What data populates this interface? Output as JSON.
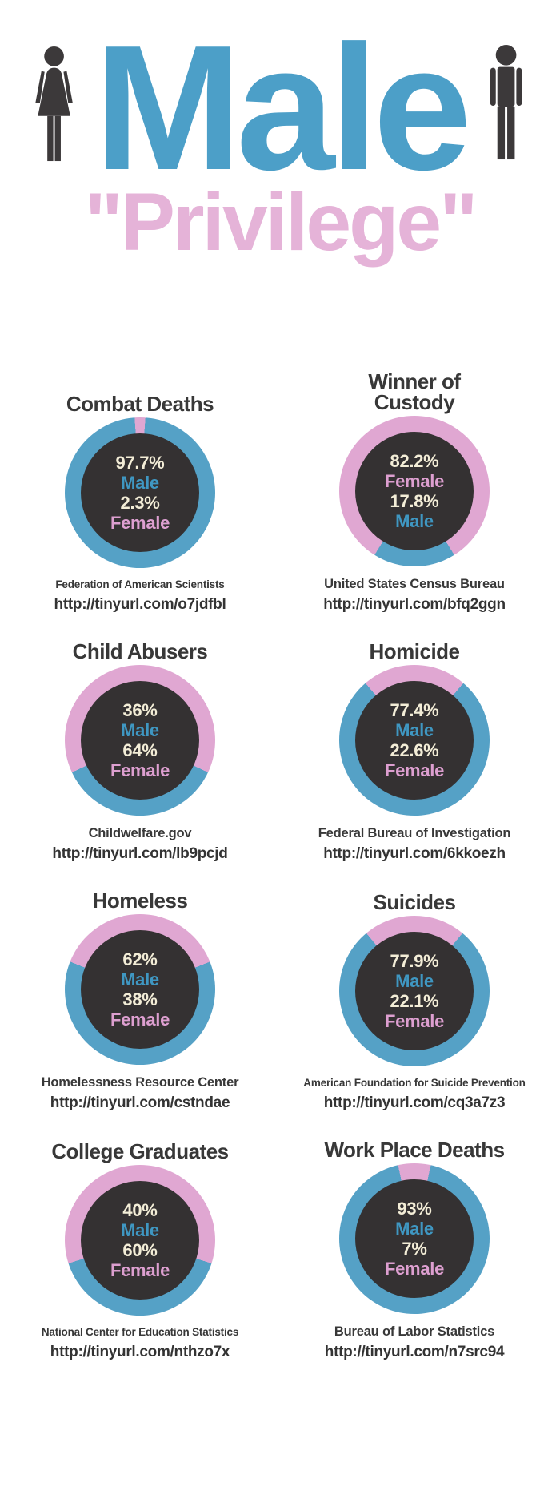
{
  "header": {
    "title": "Male",
    "subtitle": "\"Privilege\""
  },
  "colors": {
    "ring_blue": "#55a1c6",
    "ring_pink": "#e0a7d2",
    "center_dark": "#343132",
    "percent_cream": "#f3edd7",
    "male_text_blue": "#3f97c2",
    "female_text_pink": "#dd9fd0",
    "header_male_blue": "#4c9fc8",
    "header_privilege_pink": "#e5b3d8",
    "heading_dark": "#383838",
    "icon_gray": "#3c393a"
  },
  "chart_data": [
    {
      "type": "pie",
      "title": "Combat Deaths",
      "title_lines": [
        "Combat Deaths"
      ],
      "categories": [
        "Male",
        "Female"
      ],
      "values": [
        97.7,
        2.3
      ],
      "value_labels": [
        "97.7%",
        "2.3%"
      ],
      "center_text_order": [
        "Male",
        "Female"
      ],
      "segment_layout": "female-segment-centered-top",
      "source": "Federation of American Scientists",
      "url": "http://tinyurl.com/o7jdfbl"
    },
    {
      "type": "pie",
      "title": "Winner of Custody",
      "title_lines": [
        "Winner of",
        "Custody"
      ],
      "categories": [
        "Male",
        "Female"
      ],
      "values": [
        17.8,
        82.2
      ],
      "value_labels": [
        "17.8%",
        "82.2%"
      ],
      "center_text_order": [
        "Female",
        "Male"
      ],
      "segment_layout": "male-segment-centered-bottom",
      "source": "United States Census Bureau",
      "url": "http://tinyurl.com/bfq2ggn"
    },
    {
      "type": "pie",
      "title": "Child Abusers",
      "title_lines": [
        "Child Abusers"
      ],
      "categories": [
        "Male",
        "Female"
      ],
      "values": [
        36,
        64
      ],
      "value_labels": [
        "36%",
        "64%"
      ],
      "center_text_order": [
        "Male",
        "Female"
      ],
      "segment_layout": "male-segment-centered-bottom",
      "source": "Childwelfare.gov",
      "url": "http://tinyurl.com/lb9pcjd"
    },
    {
      "type": "pie",
      "title": "Homicide",
      "title_lines": [
        "Homicide"
      ],
      "categories": [
        "Male",
        "Female"
      ],
      "values": [
        77.4,
        22.6
      ],
      "value_labels": [
        "77.4%",
        "22.6%"
      ],
      "center_text_order": [
        "Male",
        "Female"
      ],
      "segment_layout": "female-segment-centered-top",
      "source": "Federal Bureau of Investigation",
      "url": "http://tinyurl.com/6kkoezh"
    },
    {
      "type": "pie",
      "title": "Homeless",
      "title_lines": [
        "Homeless"
      ],
      "categories": [
        "Male",
        "Female"
      ],
      "values": [
        62,
        38
      ],
      "value_labels": [
        "62%",
        "38%"
      ],
      "center_text_order": [
        "Male",
        "Female"
      ],
      "segment_layout": "female-segment-centered-top",
      "source": "Homelessness Resource Center",
      "url": "http://tinyurl.com/cstndae"
    },
    {
      "type": "pie",
      "title": "Suicides",
      "title_lines": [
        "Suicides"
      ],
      "categories": [
        "Male",
        "Female"
      ],
      "values": [
        77.9,
        22.1
      ],
      "value_labels": [
        "77.9%",
        "22.1%"
      ],
      "center_text_order": [
        "Male",
        "Female"
      ],
      "segment_layout": "female-segment-centered-top",
      "source": "American Foundation for Suicide Prevention",
      "url": "http://tinyurl.com/cq3a7z3"
    },
    {
      "type": "pie",
      "title": "College Graduates",
      "title_lines": [
        "College Graduates"
      ],
      "categories": [
        "Male",
        "Female"
      ],
      "values": [
        40,
        60
      ],
      "value_labels": [
        "40%",
        "60%"
      ],
      "center_text_order": [
        "Male",
        "Female"
      ],
      "segment_layout": "male-segment-centered-bottom",
      "source": "National Center for Education Statistics",
      "url": "http://tinyurl.com/nthzo7x"
    },
    {
      "type": "pie",
      "title": "Work Place Deaths",
      "title_lines": [
        "Work Place Deaths"
      ],
      "categories": [
        "Male",
        "Female"
      ],
      "values": [
        93,
        7
      ],
      "value_labels": [
        "93%",
        "7%"
      ],
      "center_text_order": [
        "Male",
        "Female"
      ],
      "segment_layout": "female-segment-centered-top",
      "source": "Bureau of Labor Statistics",
      "url": "http://tinyurl.com/n7src94"
    }
  ]
}
